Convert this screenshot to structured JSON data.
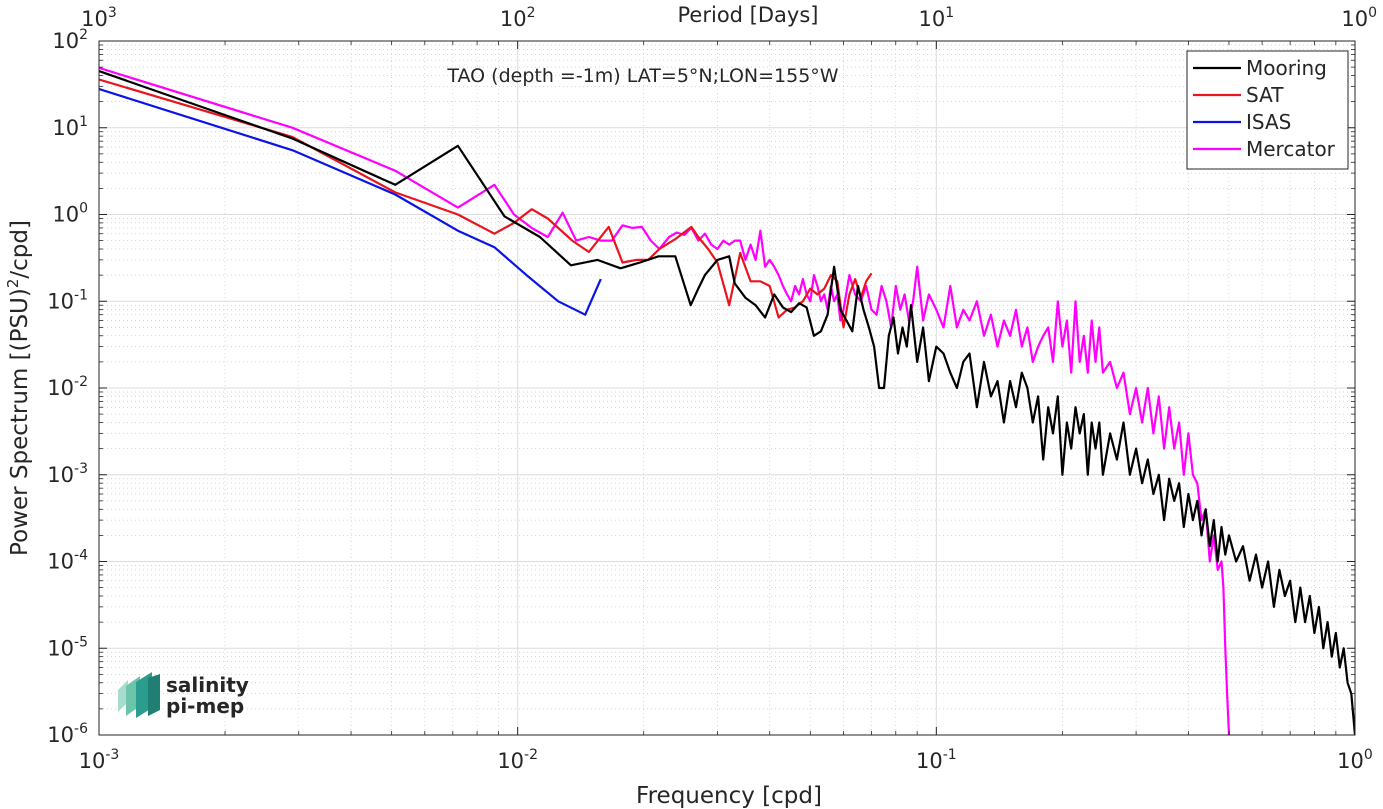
{
  "chart_data": {
    "type": "line",
    "title": "TAO (depth =-1m) LAT=5°N;LON=155°W",
    "xlabel": "Frequency [cpd]",
    "ylabel": "Power Spectrum [(PSU)²/cpd]",
    "ylabel_base": "Power Spectrum [(PSU)",
    "ylabel_sup": "2",
    "ylabel_tail": "/cpd]",
    "x2label": "Period [Days]",
    "xscale": "log",
    "yscale": "log",
    "xlim": [
      0.001,
      1
    ],
    "ylim": [
      1e-06,
      100
    ],
    "grid": true,
    "legend_position": "top-right",
    "x_ticks": [
      {
        "value": 0.001,
        "base": "10",
        "exp": "-3"
      },
      {
        "value": 0.01,
        "base": "10",
        "exp": "-2"
      },
      {
        "value": 0.1,
        "base": "10",
        "exp": "-1"
      },
      {
        "value": 1,
        "base": "10",
        "exp": "0"
      }
    ],
    "x2_ticks": [
      {
        "value": 0.001,
        "base": "10",
        "exp": "3"
      },
      {
        "value": 0.01,
        "base": "10",
        "exp": "2"
      },
      {
        "value": 0.1,
        "base": "10",
        "exp": "1"
      },
      {
        "value": 1,
        "base": "10",
        "exp": "0"
      }
    ],
    "y_ticks": [
      {
        "value": 100,
        "base": "10",
        "exp": "2"
      },
      {
        "value": 10,
        "base": "10",
        "exp": "1"
      },
      {
        "value": 1,
        "base": "10",
        "exp": "0"
      },
      {
        "value": 0.1,
        "base": "10",
        "exp": "-1"
      },
      {
        "value": 0.01,
        "base": "10",
        "exp": "-2"
      },
      {
        "value": 0.001,
        "base": "10",
        "exp": "-3"
      },
      {
        "value": 0.0001,
        "base": "10",
        "exp": "-4"
      },
      {
        "value": 1e-05,
        "base": "10",
        "exp": "-5"
      },
      {
        "value": 1e-06,
        "base": "10",
        "exp": "-6"
      }
    ],
    "series": [
      {
        "name": "Mooring",
        "color": "#000000",
        "x": [
          0.001,
          0.0029,
          0.0051,
          0.0072,
          0.0093,
          0.0113,
          0.0134,
          0.0155,
          0.0176,
          0.0196,
          0.0217,
          0.0238,
          0.0259,
          0.027,
          0.028,
          0.03,
          0.032,
          0.033,
          0.035,
          0.037,
          0.039,
          0.041,
          0.043,
          0.045,
          0.047,
          0.049,
          0.051,
          0.053,
          0.055,
          0.057,
          0.059,
          0.061,
          0.063,
          0.065,
          0.067,
          0.069,
          0.071,
          0.073,
          0.075,
          0.077,
          0.079,
          0.081,
          0.083,
          0.085,
          0.087,
          0.09,
          0.093,
          0.096,
          0.1,
          0.104,
          0.108,
          0.112,
          0.116,
          0.12,
          0.125,
          0.13,
          0.135,
          0.14,
          0.145,
          0.15,
          0.155,
          0.16,
          0.165,
          0.17,
          0.175,
          0.18,
          0.185,
          0.19,
          0.195,
          0.2,
          0.205,
          0.21,
          0.215,
          0.22,
          0.225,
          0.23,
          0.235,
          0.24,
          0.245,
          0.25,
          0.26,
          0.27,
          0.28,
          0.29,
          0.3,
          0.31,
          0.32,
          0.33,
          0.34,
          0.35,
          0.36,
          0.37,
          0.38,
          0.39,
          0.4,
          0.41,
          0.42,
          0.43,
          0.44,
          0.45,
          0.46,
          0.47,
          0.48,
          0.49,
          0.5,
          0.52,
          0.54,
          0.56,
          0.58,
          0.6,
          0.62,
          0.64,
          0.66,
          0.68,
          0.7,
          0.72,
          0.74,
          0.76,
          0.78,
          0.8,
          0.82,
          0.84,
          0.86,
          0.88,
          0.9,
          0.92,
          0.94,
          0.96,
          0.98,
          1.0
        ],
        "y": [
          45,
          7.5,
          2.2,
          6.2,
          0.95,
          0.55,
          0.26,
          0.3,
          0.24,
          0.28,
          0.33,
          0.33,
          0.09,
          0.14,
          0.2,
          0.3,
          0.33,
          0.16,
          0.11,
          0.09,
          0.065,
          0.12,
          0.085,
          0.075,
          0.095,
          0.085,
          0.04,
          0.045,
          0.07,
          0.25,
          0.08,
          0.06,
          0.045,
          0.15,
          0.08,
          0.05,
          0.03,
          0.01,
          0.01,
          0.04,
          0.065,
          0.025,
          0.05,
          0.03,
          0.09,
          0.02,
          0.05,
          0.012,
          0.03,
          0.025,
          0.015,
          0.01,
          0.02,
          0.025,
          0.006,
          0.02,
          0.008,
          0.012,
          0.004,
          0.012,
          0.006,
          0.015,
          0.01,
          0.004,
          0.008,
          0.0015,
          0.006,
          0.003,
          0.008,
          0.001,
          0.004,
          0.002,
          0.006,
          0.003,
          0.005,
          0.001,
          0.004,
          0.002,
          0.004,
          0.001,
          0.003,
          0.0015,
          0.004,
          0.001,
          0.002,
          0.0008,
          0.0015,
          0.0006,
          0.001,
          0.0003,
          0.0009,
          0.0005,
          0.0008,
          0.00025,
          0.0006,
          0.0003,
          0.0005,
          0.0002,
          0.0004,
          0.00015,
          0.0003,
          0.0001,
          0.00025,
          0.00012,
          0.0002,
          0.0001,
          0.00015,
          6e-05,
          0.00012,
          5e-05,
          0.0001,
          3e-05,
          8e-05,
          4e-05,
          6e-05,
          2e-05,
          5e-05,
          2e-05,
          4e-05,
          1.5e-05,
          3e-05,
          1e-05,
          2e-05,
          8e-06,
          1.5e-05,
          6e-06,
          1e-05,
          4e-06,
          3e-06,
          1e-06
        ]
      },
      {
        "name": "SAT",
        "color": "#e8141e",
        "x": [
          0.001,
          0.0029,
          0.0051,
          0.0072,
          0.0088,
          0.0098,
          0.0108,
          0.0118,
          0.0135,
          0.0148,
          0.0165,
          0.0178,
          0.0192,
          0.0205,
          0.0218,
          0.0238,
          0.026,
          0.027,
          0.0285,
          0.03,
          0.032,
          0.034,
          0.036,
          0.038,
          0.04,
          0.042,
          0.044,
          0.046,
          0.048,
          0.05,
          0.052,
          0.054,
          0.056,
          0.058,
          0.06,
          0.062,
          0.064,
          0.066,
          0.068,
          0.07
        ],
        "y": [
          36,
          7.8,
          1.8,
          1.0,
          0.6,
          0.8,
          1.15,
          0.9,
          0.5,
          0.37,
          0.72,
          0.28,
          0.3,
          0.3,
          0.4,
          0.52,
          0.72,
          0.55,
          0.4,
          0.28,
          0.09,
          0.36,
          0.17,
          0.17,
          0.15,
          0.065,
          0.08,
          0.085,
          0.1,
          0.14,
          0.12,
          0.14,
          0.2,
          0.17,
          0.05,
          0.12,
          0.18,
          0.11,
          0.17,
          0.21
        ]
      },
      {
        "name": "ISAS",
        "color": "#0a14e6",
        "x": [
          0.001,
          0.0029,
          0.0051,
          0.0072,
          0.0088,
          0.0105,
          0.0125,
          0.0145,
          0.0158
        ],
        "y": [
          28,
          5.5,
          1.7,
          0.65,
          0.42,
          0.2,
          0.1,
          0.07,
          0.18
        ]
      },
      {
        "name": "Mercator",
        "color": "#ff00ff",
        "x": [
          0.001,
          0.0029,
          0.0051,
          0.0072,
          0.0088,
          0.0098,
          0.0108,
          0.0118,
          0.0128,
          0.0138,
          0.0148,
          0.0158,
          0.0168,
          0.0178,
          0.0188,
          0.0198,
          0.0208,
          0.0218,
          0.023,
          0.024,
          0.025,
          0.026,
          0.027,
          0.028,
          0.029,
          0.03,
          0.031,
          0.032,
          0.033,
          0.034,
          0.035,
          0.036,
          0.037,
          0.038,
          0.039,
          0.04,
          0.041,
          0.042,
          0.043,
          0.044,
          0.045,
          0.046,
          0.047,
          0.048,
          0.049,
          0.05,
          0.051,
          0.052,
          0.053,
          0.054,
          0.055,
          0.056,
          0.057,
          0.058,
          0.059,
          0.06,
          0.062,
          0.064,
          0.066,
          0.068,
          0.07,
          0.072,
          0.074,
          0.076,
          0.078,
          0.08,
          0.082,
          0.084,
          0.086,
          0.088,
          0.09,
          0.093,
          0.096,
          0.1,
          0.104,
          0.108,
          0.112,
          0.116,
          0.12,
          0.125,
          0.13,
          0.135,
          0.14,
          0.145,
          0.15,
          0.155,
          0.16,
          0.165,
          0.17,
          0.175,
          0.18,
          0.185,
          0.19,
          0.195,
          0.2,
          0.205,
          0.21,
          0.215,
          0.22,
          0.225,
          0.23,
          0.235,
          0.24,
          0.245,
          0.25,
          0.26,
          0.27,
          0.28,
          0.29,
          0.3,
          0.31,
          0.32,
          0.33,
          0.34,
          0.35,
          0.36,
          0.37,
          0.38,
          0.39,
          0.4,
          0.41,
          0.42,
          0.43,
          0.44,
          0.45,
          0.46,
          0.47,
          0.48,
          0.485,
          0.49,
          0.495,
          0.5
        ],
        "y": [
          49,
          10,
          3.2,
          1.2,
          2.2,
          1.0,
          0.7,
          0.55,
          1.05,
          0.5,
          0.55,
          0.5,
          0.5,
          0.75,
          0.7,
          0.72,
          0.5,
          0.4,
          0.55,
          0.62,
          0.58,
          0.7,
          0.5,
          0.6,
          0.45,
          0.4,
          0.5,
          0.45,
          0.5,
          0.5,
          0.3,
          0.45,
          0.3,
          0.65,
          0.25,
          0.3,
          0.25,
          0.2,
          0.15,
          0.12,
          0.1,
          0.15,
          0.12,
          0.18,
          0.12,
          0.1,
          0.2,
          0.15,
          0.1,
          0.12,
          0.08,
          0.15,
          0.1,
          0.12,
          0.06,
          0.08,
          0.2,
          0.12,
          0.1,
          0.15,
          0.08,
          0.07,
          0.15,
          0.1,
          0.05,
          0.15,
          0.08,
          0.12,
          0.06,
          0.1,
          0.25,
          0.06,
          0.12,
          0.08,
          0.05,
          0.15,
          0.05,
          0.08,
          0.06,
          0.1,
          0.04,
          0.07,
          0.03,
          0.06,
          0.04,
          0.08,
          0.03,
          0.05,
          0.02,
          0.03,
          0.04,
          0.05,
          0.02,
          0.1,
          0.03,
          0.06,
          0.015,
          0.1,
          0.02,
          0.04,
          0.015,
          0.06,
          0.02,
          0.05,
          0.015,
          0.02,
          0.01,
          0.015,
          0.005,
          0.01,
          0.004,
          0.01,
          0.003,
          0.008,
          0.002,
          0.006,
          0.002,
          0.004,
          0.001,
          0.003,
          0.001,
          0.0008,
          0.0003,
          0.0004,
          0.0001,
          0.0002,
          8e-05,
          0.0001,
          5e-05,
          1e-05,
          3e-06,
          1e-06
        ]
      }
    ]
  },
  "logo": {
    "line1": "salinity",
    "line2": "pi-mep"
  }
}
